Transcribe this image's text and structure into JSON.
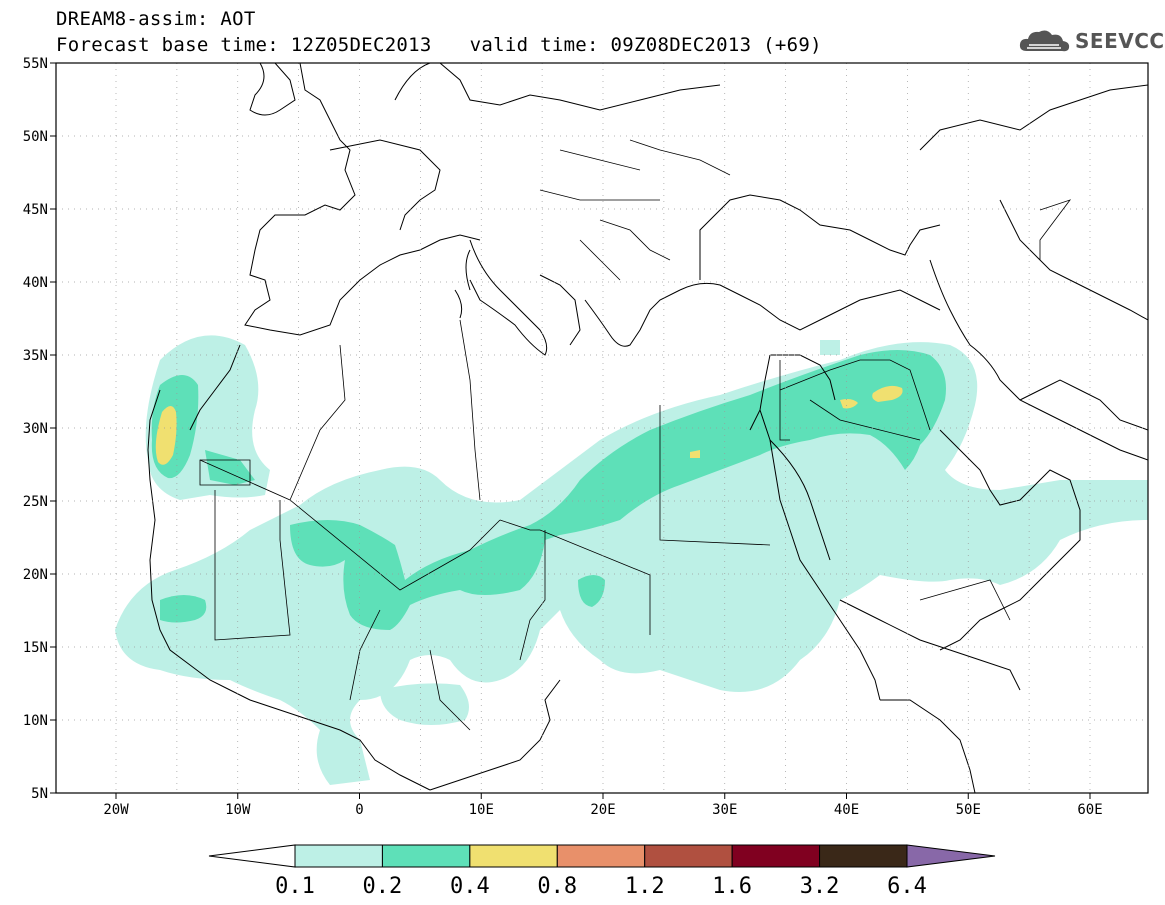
{
  "header": {
    "title_line1": "DREAM8-assim: AOT",
    "base_time": "Forecast base time: 12Z05DEC2013",
    "valid_time": "valid time: 09Z08DEC2013 (+69)"
  },
  "logo": {
    "name": "cloud-logo-icon",
    "text": "SEEVCCC"
  },
  "map": {
    "lat_labels": [
      "55N",
      "50N",
      "45N",
      "40N",
      "35N",
      "30N",
      "25N",
      "20N",
      "15N",
      "10N",
      "5N"
    ],
    "lon_labels": [
      "20W",
      "10W",
      "0",
      "10E",
      "20E",
      "30E",
      "40E",
      "50E",
      "60E"
    ]
  },
  "colorbar": {
    "colors": [
      "#bdf0e6",
      "#5ee0b8",
      "#f0e070",
      "#e8906a",
      "#b05040",
      "#800020",
      "#3a2818",
      "#8868a8"
    ],
    "under_color": "#ffffff",
    "labels": [
      "0.1",
      "0.2",
      "0.4",
      "0.8",
      "1.2",
      "1.6",
      "3.2",
      "6.4"
    ]
  }
}
